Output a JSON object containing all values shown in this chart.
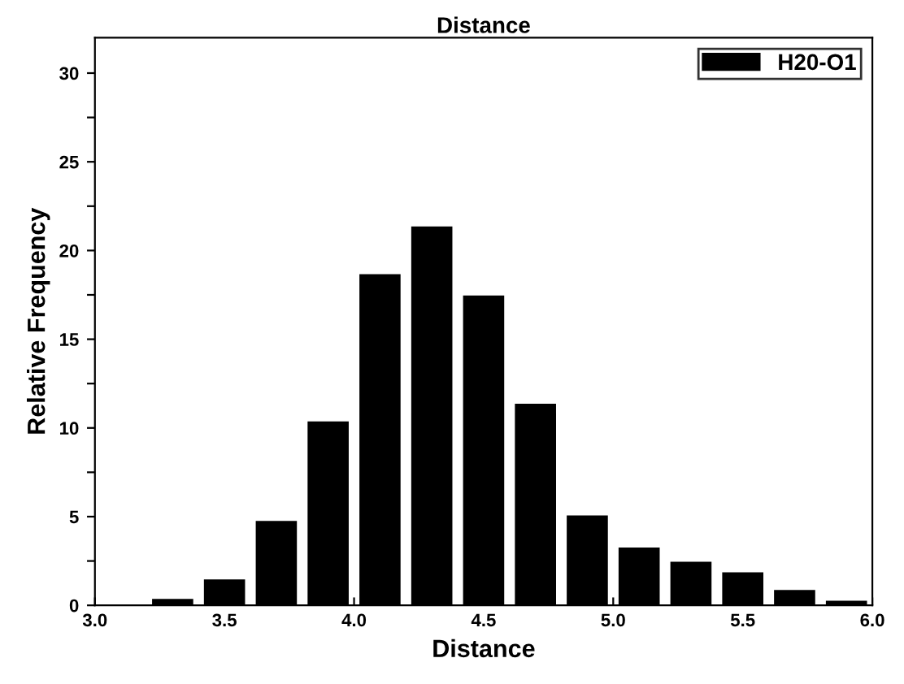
{
  "chart_data": {
    "type": "histogram",
    "title": "Distance",
    "xlabel": "Distance",
    "ylabel": "Relative Frequency",
    "bins": [
      3.2,
      3.4,
      3.6,
      3.8,
      4.0,
      4.2,
      4.4,
      4.6,
      4.8,
      5.0,
      5.2,
      5.4,
      5.6,
      5.8,
      6.0
    ],
    "series": [
      {
        "name": "H20-O1",
        "color": "#000000",
        "values": [
          0.4,
          1.5,
          4.8,
          10.4,
          18.7,
          21.4,
          17.5,
          11.4,
          5.1,
          3.3,
          2.5,
          1.9,
          0.9,
          0.3
        ]
      }
    ],
    "xlim": [
      3.0,
      6.0
    ],
    "xticks": [
      {
        "value": 3.0,
        "label": "3.0"
      },
      3.5,
      {
        "value": 4.0,
        "label": "4.0"
      },
      4.5,
      {
        "value": 5.0,
        "label": "5.0"
      },
      5.5,
      {
        "value": 6.0,
        "label": "6.0"
      }
    ],
    "ylim": [
      0,
      32
    ],
    "yticks": [
      0,
      {
        "value": 2.5,
        "label": null
      },
      5,
      {
        "value": 7.5,
        "label": null
      },
      10,
      {
        "value": 12.5,
        "label": null
      },
      15,
      {
        "value": 17.5,
        "label": null
      },
      20,
      {
        "value": 22.5,
        "label": null
      },
      25,
      {
        "value": 27.5,
        "label": null
      },
      30
    ],
    "legend": "top right",
    "grid": false
  }
}
